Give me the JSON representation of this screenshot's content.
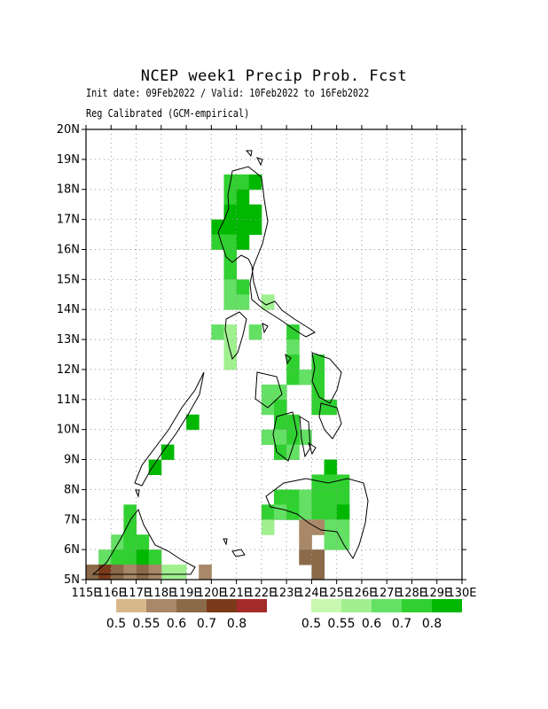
{
  "title": "NCEP week1 Precip Prob. Fcst",
  "subtitle_dates": "Init date: 09Feb2022 / Valid: 10Feb2022 to 16Feb2022",
  "subtitle_method": "Reg Calibrated (GCM-empirical)",
  "axes": {
    "lon_range": [
      115,
      130
    ],
    "lat_range": [
      5,
      20
    ],
    "lon_ticks": [
      "115E",
      "116E",
      "117E",
      "118E",
      "119E",
      "120E",
      "121E",
      "122E",
      "123E",
      "124E",
      "125E",
      "126E",
      "127E",
      "128E",
      "129E",
      "130E"
    ],
    "lat_ticks": [
      "5N",
      "6N",
      "7N",
      "8N",
      "9N",
      "10N",
      "11N",
      "12N",
      "13N",
      "14N",
      "15N",
      "16N",
      "17N",
      "18N",
      "19N",
      "20N"
    ],
    "grid": true
  },
  "legend_below": {
    "labels": [
      "0.5",
      "0.55",
      "0.6",
      "0.7",
      "0.8"
    ],
    "colors": [
      "#d8b88a",
      "#a88868",
      "#8a6a48",
      "#7a3a1a",
      "#a52a2a"
    ]
  },
  "legend_above": {
    "labels": [
      "0.5",
      "0.55",
      "0.6",
      "0.7",
      "0.8"
    ],
    "colors": [
      "#c8f8b0",
      "#a0f090",
      "#64e064",
      "#30d030",
      "#00b800"
    ]
  },
  "grid_cells": {
    "cell_deg": 0.5,
    "above": [
      [
        120.75,
        18.25,
        3
      ],
      [
        121.25,
        18.25,
        3
      ],
      [
        121.75,
        18.25,
        4
      ],
      [
        120.75,
        17.75,
        3
      ],
      [
        121.25,
        17.75,
        4
      ],
      [
        120.75,
        17.25,
        4
      ],
      [
        121.25,
        17.25,
        4
      ],
      [
        121.75,
        17.25,
        4
      ],
      [
        120.25,
        16.75,
        4
      ],
      [
        120.75,
        16.75,
        4
      ],
      [
        121.25,
        16.75,
        4
      ],
      [
        121.75,
        16.75,
        4
      ],
      [
        120.25,
        16.25,
        3
      ],
      [
        120.75,
        16.25,
        3
      ],
      [
        121.25,
        16.25,
        4
      ],
      [
        120.75,
        15.75,
        3
      ],
      [
        120.75,
        15.25,
        3
      ],
      [
        120.75,
        14.75,
        2
      ],
      [
        121.25,
        14.75,
        3
      ],
      [
        120.75,
        14.25,
        2
      ],
      [
        121.25,
        14.25,
        2
      ],
      [
        122.25,
        14.25,
        1
      ],
      [
        120.25,
        13.25,
        2
      ],
      [
        120.75,
        13.25,
        1
      ],
      [
        121.75,
        13.25,
        2
      ],
      [
        123.25,
        13.25,
        3
      ],
      [
        120.75,
        12.75,
        1
      ],
      [
        123.25,
        12.75,
        2
      ],
      [
        120.75,
        12.25,
        1
      ],
      [
        123.25,
        12.25,
        3
      ],
      [
        124.25,
        12.25,
        3
      ],
      [
        123.25,
        11.75,
        3
      ],
      [
        123.75,
        11.75,
        2
      ],
      [
        124.25,
        11.75,
        3
      ],
      [
        122.25,
        11.25,
        2
      ],
      [
        122.25,
        10.75,
        2
      ],
      [
        124.25,
        11.25,
        3
      ],
      [
        124.25,
        10.75,
        3
      ],
      [
        124.75,
        10.75,
        3
      ],
      [
        122.75,
        11.25,
        2
      ],
      [
        122.75,
        10.75,
        3
      ],
      [
        122.75,
        10.25,
        3
      ],
      [
        123.25,
        10.25,
        3
      ],
      [
        119.25,
        10.25,
        4
      ],
      [
        122.25,
        9.75,
        2
      ],
      [
        122.75,
        9.75,
        2
      ],
      [
        123.75,
        9.75,
        2
      ],
      [
        123.25,
        9.75,
        3
      ],
      [
        122.75,
        9.25,
        3
      ],
      [
        123.25,
        9.25,
        2
      ],
      [
        118.25,
        9.25,
        4
      ],
      [
        117.75,
        8.75,
        4
      ],
      [
        124.75,
        8.75,
        4
      ],
      [
        124.25,
        8.25,
        3
      ],
      [
        124.75,
        8.25,
        3
      ],
      [
        125.25,
        8.25,
        3
      ],
      [
        122.75,
        7.75,
        3
      ],
      [
        123.25,
        7.75,
        3
      ],
      [
        123.75,
        7.75,
        2
      ],
      [
        124.25,
        7.75,
        3
      ],
      [
        124.75,
        7.75,
        3
      ],
      [
        125.25,
        7.75,
        3
      ],
      [
        122.25,
        7.25,
        3
      ],
      [
        122.75,
        7.25,
        2
      ],
      [
        123.25,
        7.25,
        3
      ],
      [
        123.75,
        7.25,
        2
      ],
      [
        124.25,
        7.25,
        3
      ],
      [
        124.75,
        7.25,
        3
      ],
      [
        125.25,
        7.25,
        4
      ],
      [
        122.25,
        6.75,
        1
      ],
      [
        124.25,
        6.75,
        1
      ],
      [
        124.75,
        6.75,
        2
      ],
      [
        125.25,
        6.75,
        2
      ],
      [
        124.75,
        6.25,
        2
      ],
      [
        125.25,
        6.25,
        2
      ],
      [
        116.75,
        7.25,
        3
      ],
      [
        116.75,
        6.75,
        3
      ],
      [
        116.25,
        6.25,
        2
      ],
      [
        116.75,
        6.25,
        3
      ],
      [
        117.25,
        6.25,
        3
      ],
      [
        115.75,
        5.75,
        2
      ],
      [
        116.25,
        5.75,
        3
      ],
      [
        116.75,
        5.75,
        3
      ],
      [
        117.25,
        5.75,
        4
      ],
      [
        117.75,
        5.75,
        3
      ],
      [
        118.25,
        5.25,
        1
      ],
      [
        118.75,
        5.25,
        1
      ]
    ],
    "below": [
      [
        123.75,
        6.75,
        1
      ],
      [
        124.25,
        6.75,
        1
      ],
      [
        123.75,
        6.25,
        1
      ],
      [
        123.75,
        5.75,
        2
      ],
      [
        124.25,
        5.75,
        2
      ],
      [
        124.25,
        5.25,
        2
      ],
      [
        115.25,
        5.25,
        2
      ],
      [
        115.75,
        5.25,
        3
      ],
      [
        116.25,
        5.25,
        2
      ],
      [
        116.75,
        5.25,
        1
      ],
      [
        117.25,
        5.25,
        2
      ],
      [
        117.75,
        5.25,
        1
      ],
      [
        119.75,
        5.25,
        1
      ]
    ]
  }
}
